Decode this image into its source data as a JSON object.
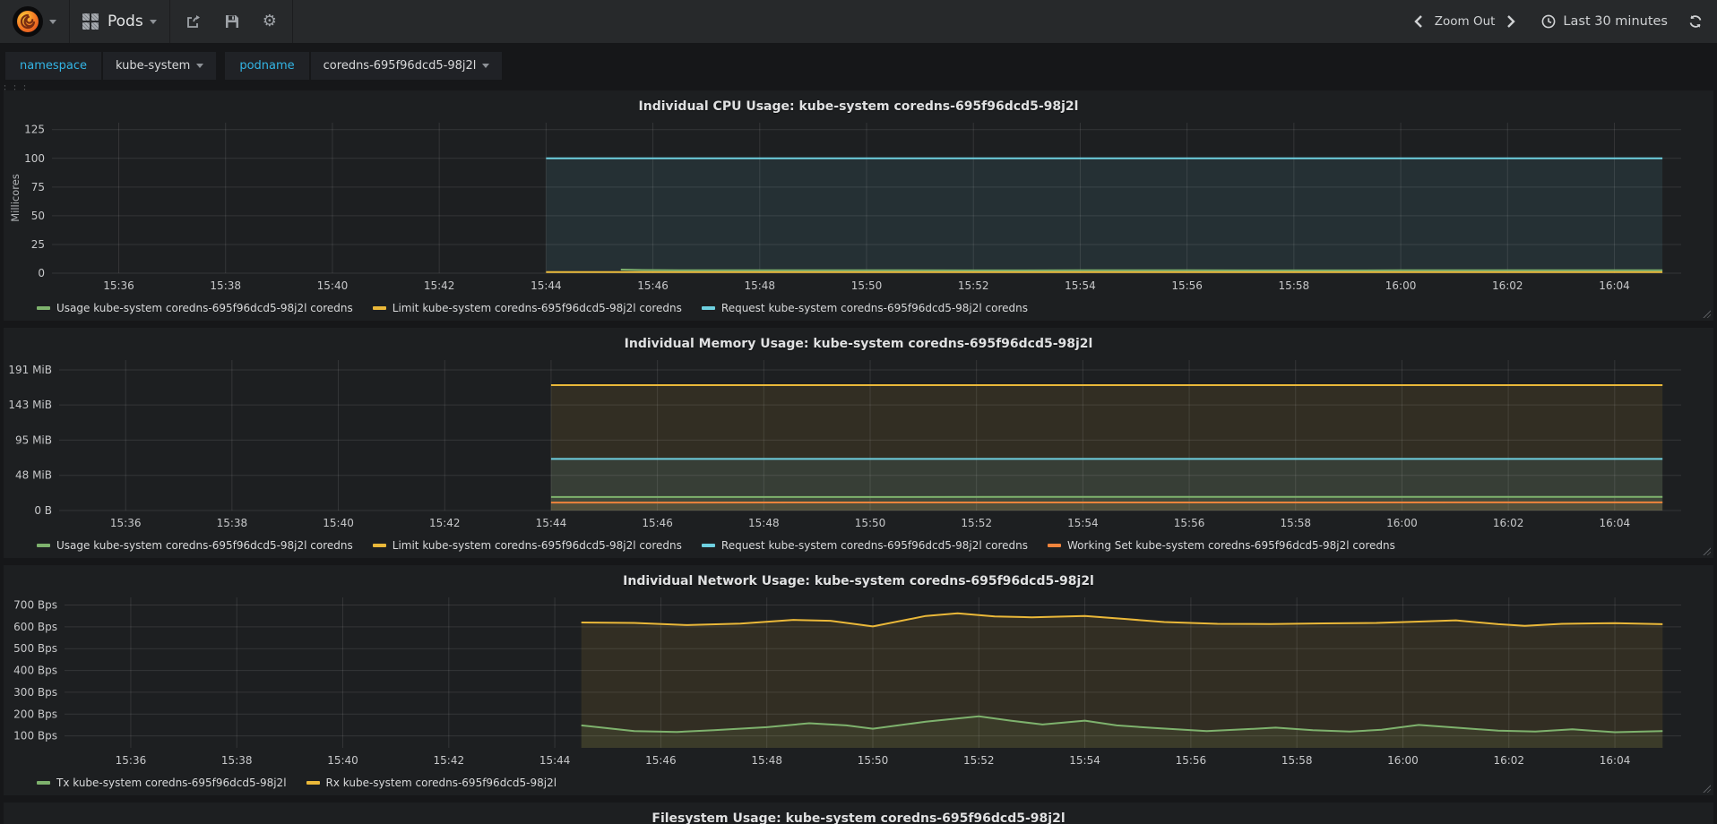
{
  "navbar": {
    "dashboard_title": "Pods",
    "zoom_out_label": "Zoom Out",
    "time_range": "Last 30 minutes"
  },
  "variables": [
    {
      "label": "namespace",
      "value": "kube-system"
    },
    {
      "label": "podname",
      "value": "coredns-695f96dcd5-98j2l"
    }
  ],
  "colors": {
    "green": "#7eb26d",
    "yellow": "#eab839",
    "cyan": "#6ed0e0",
    "orange": "#ef843c",
    "accent_blue": "#33b5e5",
    "grid": "rgba(255,255,255,0.10)",
    "tick_text": "#c7c8ca"
  },
  "chart_data": [
    {
      "id": "cpu",
      "type": "line",
      "title": "Individual CPU Usage: kube-system coredns-695f96dcd5-98j2l",
      "ylabel": "Millicores",
      "ylim": [
        0,
        131
      ],
      "margin_left": 50,
      "yticks": [
        {
          "v": 0,
          "label": "0"
        },
        {
          "v": 25,
          "label": "25"
        },
        {
          "v": 50,
          "label": "50"
        },
        {
          "v": 75,
          "label": "75"
        },
        {
          "v": 100,
          "label": "100"
        },
        {
          "v": 125,
          "label": "125"
        }
      ],
      "xlim": [
        34.75,
        65.25
      ],
      "xticks": [
        {
          "v": 36,
          "label": "15:36"
        },
        {
          "v": 38,
          "label": "15:38"
        },
        {
          "v": 40,
          "label": "15:40"
        },
        {
          "v": 42,
          "label": "15:42"
        },
        {
          "v": 44,
          "label": "15:44"
        },
        {
          "v": 46,
          "label": "15:46"
        },
        {
          "v": 48,
          "label": "15:48"
        },
        {
          "v": 50,
          "label": "15:50"
        },
        {
          "v": 52,
          "label": "15:52"
        },
        {
          "v": 54,
          "label": "15:54"
        },
        {
          "v": 56,
          "label": "15:56"
        },
        {
          "v": 58,
          "label": "15:58"
        },
        {
          "v": 60,
          "label": "16:00"
        },
        {
          "v": 62,
          "label": "16:02"
        },
        {
          "v": 64,
          "label": "16:04"
        }
      ],
      "series": [
        {
          "name": "Usage kube-system coredns-695f96dcd5-98j2l coredns",
          "color": "#7eb26d",
          "fill": 0.06,
          "points": [
            [
              45.4,
              3.1
            ],
            [
              45.8,
              2.7
            ],
            [
              46.5,
              2.5
            ],
            [
              48,
              2.5
            ],
            [
              50,
              2.6
            ],
            [
              52,
              2.4
            ],
            [
              54,
              2.5
            ],
            [
              56,
              2.5
            ],
            [
              58,
              2.4
            ],
            [
              60,
              2.5
            ],
            [
              62,
              2.5
            ],
            [
              63.5,
              2.6
            ],
            [
              64.9,
              2.5
            ]
          ]
        },
        {
          "name": "Limit kube-system coredns-695f96dcd5-98j2l coredns",
          "color": "#eab839",
          "fill": 0.06,
          "points": [
            [
              44,
              0.9
            ],
            [
              64.9,
              0.9
            ]
          ]
        },
        {
          "name": "Request kube-system coredns-695f96dcd5-98j2l coredns",
          "color": "#6ed0e0",
          "fill": 0.1,
          "points": [
            [
              44,
              100
            ],
            [
              64.9,
              100
            ]
          ]
        }
      ]
    },
    {
      "id": "memory",
      "type": "line",
      "title": "Individual Memory Usage: kube-system coredns-695f96dcd5-98j2l",
      "ylabel": "",
      "ylim": [
        0,
        204
      ],
      "margin_left": 58,
      "yticks": [
        {
          "v": 0,
          "label": "0 B"
        },
        {
          "v": 47.7,
          "label": "48 MiB"
        },
        {
          "v": 95.4,
          "label": "95 MiB"
        },
        {
          "v": 143.1,
          "label": "143 MiB"
        },
        {
          "v": 190.7,
          "label": "191 MiB"
        }
      ],
      "xlim": [
        34.75,
        65.25
      ],
      "xticks": [
        {
          "v": 36,
          "label": "15:36"
        },
        {
          "v": 38,
          "label": "15:38"
        },
        {
          "v": 40,
          "label": "15:40"
        },
        {
          "v": 42,
          "label": "15:42"
        },
        {
          "v": 44,
          "label": "15:44"
        },
        {
          "v": 46,
          "label": "15:46"
        },
        {
          "v": 48,
          "label": "15:48"
        },
        {
          "v": 50,
          "label": "15:50"
        },
        {
          "v": 52,
          "label": "15:52"
        },
        {
          "v": 54,
          "label": "15:54"
        },
        {
          "v": 56,
          "label": "15:56"
        },
        {
          "v": 58,
          "label": "15:58"
        },
        {
          "v": 60,
          "label": "16:00"
        },
        {
          "v": 62,
          "label": "16:02"
        },
        {
          "v": 64,
          "label": "16:04"
        }
      ],
      "series": [
        {
          "name": "Usage kube-system coredns-695f96dcd5-98j2l coredns",
          "color": "#7eb26d",
          "fill": 0.1,
          "points": [
            [
              44,
              18.3
            ],
            [
              54,
              18.5
            ],
            [
              64.9,
              18.6
            ]
          ]
        },
        {
          "name": "Limit kube-system coredns-695f96dcd5-98j2l coredns",
          "color": "#eab839",
          "fill": 0.1,
          "points": [
            [
              44,
              170
            ],
            [
              64.9,
              170
            ]
          ]
        },
        {
          "name": "Request kube-system coredns-695f96dcd5-98j2l coredns",
          "color": "#6ed0e0",
          "fill": 0.1,
          "points": [
            [
              44,
              70
            ],
            [
              64.9,
              70
            ]
          ]
        },
        {
          "name": "Working Set kube-system coredns-695f96dcd5-98j2l coredns",
          "color": "#ef843c",
          "fill": 0.1,
          "points": [
            [
              44,
              10.8
            ],
            [
              54,
              10.9
            ],
            [
              64.9,
              11.0
            ]
          ]
        }
      ]
    },
    {
      "id": "network",
      "type": "line",
      "title": "Individual Network Usage: kube-system coredns-695f96dcd5-98j2l",
      "ylabel": "",
      "ylim": [
        45,
        735
      ],
      "margin_left": 64,
      "yticks": [
        {
          "v": 100,
          "label": "100 Bps"
        },
        {
          "v": 200,
          "label": "200 Bps"
        },
        {
          "v": 300,
          "label": "300 Bps"
        },
        {
          "v": 400,
          "label": "400 Bps"
        },
        {
          "v": 500,
          "label": "500 Bps"
        },
        {
          "v": 600,
          "label": "600 Bps"
        },
        {
          "v": 700,
          "label": "700 Bps"
        }
      ],
      "xlim": [
        34.75,
        65.25
      ],
      "xticks": [
        {
          "v": 36,
          "label": "15:36"
        },
        {
          "v": 38,
          "label": "15:38"
        },
        {
          "v": 40,
          "label": "15:40"
        },
        {
          "v": 42,
          "label": "15:42"
        },
        {
          "v": 44,
          "label": "15:44"
        },
        {
          "v": 46,
          "label": "15:46"
        },
        {
          "v": 48,
          "label": "15:48"
        },
        {
          "v": 50,
          "label": "15:50"
        },
        {
          "v": 52,
          "label": "15:52"
        },
        {
          "v": 54,
          "label": "15:54"
        },
        {
          "v": 56,
          "label": "15:56"
        },
        {
          "v": 58,
          "label": "15:58"
        },
        {
          "v": 60,
          "label": "16:00"
        },
        {
          "v": 62,
          "label": "16:02"
        },
        {
          "v": 64,
          "label": "16:04"
        }
      ],
      "series": [
        {
          "name": "Tx kube-system coredns-695f96dcd5-98j2l",
          "color": "#7eb26d",
          "fill": 0.1,
          "points": [
            [
              44.5,
              148
            ],
            [
              45.5,
              122
            ],
            [
              46.3,
              118
            ],
            [
              47,
              126
            ],
            [
              48,
              140
            ],
            [
              48.8,
              158
            ],
            [
              49.5,
              148
            ],
            [
              50,
              133
            ],
            [
              51,
              165
            ],
            [
              52,
              190
            ],
            [
              52.6,
              170
            ],
            [
              53.2,
              152
            ],
            [
              54,
              170
            ],
            [
              54.6,
              148
            ],
            [
              55.3,
              136
            ],
            [
              56.3,
              122
            ],
            [
              57,
              130
            ],
            [
              57.6,
              138
            ],
            [
              58.3,
              126
            ],
            [
              59,
              120
            ],
            [
              59.6,
              128
            ],
            [
              60.3,
              150
            ],
            [
              61,
              138
            ],
            [
              61.8,
              124
            ],
            [
              62.5,
              120
            ],
            [
              63.2,
              130
            ],
            [
              64,
              117
            ],
            [
              64.9,
              122
            ]
          ]
        },
        {
          "name": "Rx kube-system coredns-695f96dcd5-98j2l",
          "color": "#eab839",
          "fill": 0.1,
          "points": [
            [
              44.5,
              620
            ],
            [
              45.5,
              618
            ],
            [
              46.5,
              608
            ],
            [
              47.5,
              615
            ],
            [
              48.5,
              632
            ],
            [
              49.2,
              628
            ],
            [
              50,
              602
            ],
            [
              51,
              650
            ],
            [
              51.6,
              662
            ],
            [
              52.3,
              648
            ],
            [
              53,
              644
            ],
            [
              54,
              650
            ],
            [
              54.8,
              635
            ],
            [
              55.5,
              622
            ],
            [
              56.5,
              614
            ],
            [
              57.5,
              613
            ],
            [
              58.5,
              616
            ],
            [
              59.5,
              618
            ],
            [
              60.3,
              624
            ],
            [
              61,
              630
            ],
            [
              61.8,
              612
            ],
            [
              62.3,
              605
            ],
            [
              63,
              614
            ],
            [
              64,
              617
            ],
            [
              64.9,
              612
            ]
          ]
        }
      ]
    },
    {
      "id": "filesystem",
      "type": "line",
      "title": "Filesystem Usage: kube-system coredns-695f96dcd5-98j2l",
      "partial": true,
      "series": []
    }
  ]
}
